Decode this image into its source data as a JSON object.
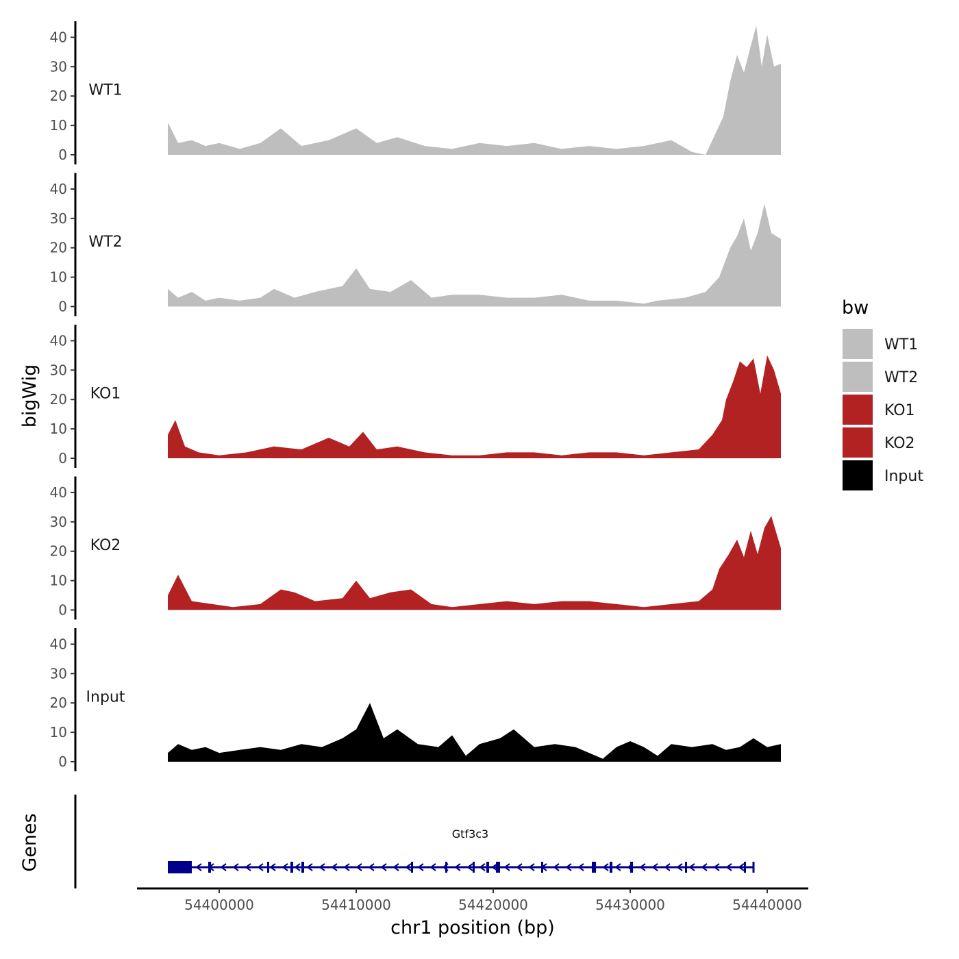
{
  "chart_data": {
    "type": "area",
    "chromosome": "chr1",
    "xlabel": "chr1 position (bp)",
    "ylabel": "bigWig",
    "genes_label": "Genes",
    "xlim": [
      54394000,
      54443000
    ],
    "x_ticks": [
      54400000,
      54410000,
      54420000,
      54430000,
      54440000
    ],
    "x_tick_labels": [
      "54400000",
      "54410000",
      "54420000",
      "54430000",
      "54440000"
    ],
    "ylim": [
      0,
      45
    ],
    "y_ticks": [
      0,
      10,
      20,
      30,
      40
    ],
    "y_tick_labels": [
      "0",
      "10",
      "20",
      "30",
      "40"
    ],
    "region": [
      54396250,
      54441000
    ],
    "legend": {
      "title": "bw",
      "entries": [
        {
          "label": "WT1",
          "color": "#bebebe"
        },
        {
          "label": "WT2",
          "color": "#bebebe"
        },
        {
          "label": "KO1",
          "color": "#b22222"
        },
        {
          "label": "KO2",
          "color": "#b22222"
        },
        {
          "label": "Input",
          "color": "#000000"
        }
      ]
    },
    "series": [
      {
        "name": "WT1",
        "color": "#bebebe",
        "values": [
          {
            "x": 54396250,
            "y": 11
          },
          {
            "x": 54397000,
            "y": 4
          },
          {
            "x": 54398000,
            "y": 5
          },
          {
            "x": 54399000,
            "y": 3
          },
          {
            "x": 54400000,
            "y": 4
          },
          {
            "x": 54401500,
            "y": 2
          },
          {
            "x": 54403000,
            "y": 4
          },
          {
            "x": 54404500,
            "y": 9
          },
          {
            "x": 54406000,
            "y": 3
          },
          {
            "x": 54408000,
            "y": 5
          },
          {
            "x": 54410000,
            "y": 9
          },
          {
            "x": 54411500,
            "y": 4
          },
          {
            "x": 54413000,
            "y": 6
          },
          {
            "x": 54415000,
            "y": 3
          },
          {
            "x": 54417000,
            "y": 2
          },
          {
            "x": 54419000,
            "y": 4
          },
          {
            "x": 54421000,
            "y": 3
          },
          {
            "x": 54423000,
            "y": 4
          },
          {
            "x": 54425000,
            "y": 2
          },
          {
            "x": 54427000,
            "y": 3
          },
          {
            "x": 54429000,
            "y": 2
          },
          {
            "x": 54431000,
            "y": 3
          },
          {
            "x": 54433000,
            "y": 5
          },
          {
            "x": 54434500,
            "y": 1
          },
          {
            "x": 54435500,
            "y": 0
          },
          {
            "x": 54436000,
            "y": 5
          },
          {
            "x": 54436800,
            "y": 13
          },
          {
            "x": 54437300,
            "y": 25
          },
          {
            "x": 54437800,
            "y": 34
          },
          {
            "x": 54438300,
            "y": 28
          },
          {
            "x": 54438800,
            "y": 37
          },
          {
            "x": 54439200,
            "y": 44
          },
          {
            "x": 54439600,
            "y": 30
          },
          {
            "x": 54440000,
            "y": 41
          },
          {
            "x": 54440500,
            "y": 30
          },
          {
            "x": 54441000,
            "y": 31
          }
        ]
      },
      {
        "name": "WT2",
        "color": "#bebebe",
        "values": [
          {
            "x": 54396250,
            "y": 6
          },
          {
            "x": 54397000,
            "y": 3
          },
          {
            "x": 54398000,
            "y": 5
          },
          {
            "x": 54399000,
            "y": 2
          },
          {
            "x": 54400000,
            "y": 3
          },
          {
            "x": 54401500,
            "y": 2
          },
          {
            "x": 54403000,
            "y": 3
          },
          {
            "x": 54404000,
            "y": 6
          },
          {
            "x": 54405500,
            "y": 3
          },
          {
            "x": 54407000,
            "y": 5
          },
          {
            "x": 54409000,
            "y": 7
          },
          {
            "x": 54410000,
            "y": 13
          },
          {
            "x": 54411000,
            "y": 6
          },
          {
            "x": 54412500,
            "y": 5
          },
          {
            "x": 54414000,
            "y": 9
          },
          {
            "x": 54415500,
            "y": 3
          },
          {
            "x": 54417000,
            "y": 4
          },
          {
            "x": 54419000,
            "y": 4
          },
          {
            "x": 54421000,
            "y": 3
          },
          {
            "x": 54423000,
            "y": 3
          },
          {
            "x": 54425000,
            "y": 4
          },
          {
            "x": 54427000,
            "y": 2
          },
          {
            "x": 54429000,
            "y": 2
          },
          {
            "x": 54431000,
            "y": 1
          },
          {
            "x": 54432000,
            "y": 2
          },
          {
            "x": 54434000,
            "y": 3
          },
          {
            "x": 54435500,
            "y": 5
          },
          {
            "x": 54436500,
            "y": 10
          },
          {
            "x": 54437300,
            "y": 20
          },
          {
            "x": 54437800,
            "y": 24
          },
          {
            "x": 54438300,
            "y": 30
          },
          {
            "x": 54438800,
            "y": 19
          },
          {
            "x": 54439300,
            "y": 25
          },
          {
            "x": 54439800,
            "y": 35
          },
          {
            "x": 54440300,
            "y": 25
          },
          {
            "x": 54441000,
            "y": 23
          }
        ]
      },
      {
        "name": "KO1",
        "color": "#b22222",
        "values": [
          {
            "x": 54396250,
            "y": 8
          },
          {
            "x": 54396800,
            "y": 13
          },
          {
            "x": 54397500,
            "y": 4
          },
          {
            "x": 54398500,
            "y": 2
          },
          {
            "x": 54400000,
            "y": 1
          },
          {
            "x": 54402000,
            "y": 2
          },
          {
            "x": 54404000,
            "y": 4
          },
          {
            "x": 54406000,
            "y": 3
          },
          {
            "x": 54408000,
            "y": 7
          },
          {
            "x": 54409500,
            "y": 4
          },
          {
            "x": 54410500,
            "y": 9
          },
          {
            "x": 54411500,
            "y": 3
          },
          {
            "x": 54413000,
            "y": 4
          },
          {
            "x": 54415000,
            "y": 2
          },
          {
            "x": 54417000,
            "y": 1
          },
          {
            "x": 54419000,
            "y": 1
          },
          {
            "x": 54421000,
            "y": 2
          },
          {
            "x": 54423000,
            "y": 2
          },
          {
            "x": 54425000,
            "y": 1
          },
          {
            "x": 54427000,
            "y": 2
          },
          {
            "x": 54429000,
            "y": 2
          },
          {
            "x": 54431000,
            "y": 1
          },
          {
            "x": 54433000,
            "y": 2
          },
          {
            "x": 54435000,
            "y": 3
          },
          {
            "x": 54436000,
            "y": 8
          },
          {
            "x": 54436700,
            "y": 13
          },
          {
            "x": 54437000,
            "y": 20
          },
          {
            "x": 54437500,
            "y": 26
          },
          {
            "x": 54438000,
            "y": 33
          },
          {
            "x": 54438500,
            "y": 31
          },
          {
            "x": 54439000,
            "y": 34
          },
          {
            "x": 54439500,
            "y": 22
          },
          {
            "x": 54440000,
            "y": 35
          },
          {
            "x": 54440500,
            "y": 30
          },
          {
            "x": 54441000,
            "y": 22
          }
        ]
      },
      {
        "name": "KO2",
        "color": "#b22222",
        "values": [
          {
            "x": 54396250,
            "y": 5
          },
          {
            "x": 54397000,
            "y": 12
          },
          {
            "x": 54398000,
            "y": 3
          },
          {
            "x": 54399500,
            "y": 2
          },
          {
            "x": 54401000,
            "y": 1
          },
          {
            "x": 54403000,
            "y": 2
          },
          {
            "x": 54404500,
            "y": 7
          },
          {
            "x": 54405500,
            "y": 6
          },
          {
            "x": 54407000,
            "y": 3
          },
          {
            "x": 54409000,
            "y": 4
          },
          {
            "x": 54410000,
            "y": 10
          },
          {
            "x": 54411000,
            "y": 4
          },
          {
            "x": 54412500,
            "y": 6
          },
          {
            "x": 54414000,
            "y": 7
          },
          {
            "x": 54415500,
            "y": 2
          },
          {
            "x": 54417000,
            "y": 1
          },
          {
            "x": 54419000,
            "y": 2
          },
          {
            "x": 54421000,
            "y": 3
          },
          {
            "x": 54423000,
            "y": 2
          },
          {
            "x": 54425000,
            "y": 3
          },
          {
            "x": 54427000,
            "y": 3
          },
          {
            "x": 54429000,
            "y": 2
          },
          {
            "x": 54431000,
            "y": 1
          },
          {
            "x": 54433000,
            "y": 2
          },
          {
            "x": 54435000,
            "y": 3
          },
          {
            "x": 54436000,
            "y": 7
          },
          {
            "x": 54436500,
            "y": 14
          },
          {
            "x": 54437200,
            "y": 19
          },
          {
            "x": 54437800,
            "y": 24
          },
          {
            "x": 54438300,
            "y": 18
          },
          {
            "x": 54438800,
            "y": 27
          },
          {
            "x": 54439300,
            "y": 19
          },
          {
            "x": 54439800,
            "y": 28
          },
          {
            "x": 54440300,
            "y": 32
          },
          {
            "x": 54441000,
            "y": 21
          }
        ]
      },
      {
        "name": "Input",
        "color": "#000000",
        "values": [
          {
            "x": 54396250,
            "y": 3
          },
          {
            "x": 54397000,
            "y": 6
          },
          {
            "x": 54398000,
            "y": 4
          },
          {
            "x": 54399000,
            "y": 5
          },
          {
            "x": 54400000,
            "y": 3
          },
          {
            "x": 54401500,
            "y": 4
          },
          {
            "x": 54403000,
            "y": 5
          },
          {
            "x": 54404500,
            "y": 4
          },
          {
            "x": 54406000,
            "y": 6
          },
          {
            "x": 54407500,
            "y": 5
          },
          {
            "x": 54409000,
            "y": 8
          },
          {
            "x": 54410000,
            "y": 11
          },
          {
            "x": 54411000,
            "y": 20
          },
          {
            "x": 54412000,
            "y": 8
          },
          {
            "x": 54413000,
            "y": 11
          },
          {
            "x": 54414500,
            "y": 6
          },
          {
            "x": 54416000,
            "y": 5
          },
          {
            "x": 54417000,
            "y": 9
          },
          {
            "x": 54418000,
            "y": 2
          },
          {
            "x": 54419000,
            "y": 6
          },
          {
            "x": 54420500,
            "y": 8
          },
          {
            "x": 54421500,
            "y": 11
          },
          {
            "x": 54423000,
            "y": 5
          },
          {
            "x": 54424500,
            "y": 6
          },
          {
            "x": 54426000,
            "y": 5
          },
          {
            "x": 54427000,
            "y": 3
          },
          {
            "x": 54428000,
            "y": 1
          },
          {
            "x": 54429000,
            "y": 5
          },
          {
            "x": 54430000,
            "y": 7
          },
          {
            "x": 54431000,
            "y": 5
          },
          {
            "x": 54432000,
            "y": 2
          },
          {
            "x": 54433000,
            "y": 6
          },
          {
            "x": 54434500,
            "y": 5
          },
          {
            "x": 54436000,
            "y": 6
          },
          {
            "x": 54437000,
            "y": 4
          },
          {
            "x": 54438000,
            "y": 5
          },
          {
            "x": 54439000,
            "y": 8
          },
          {
            "x": 54440000,
            "y": 5
          },
          {
            "x": 54441000,
            "y": 6
          }
        ]
      }
    ],
    "gene": {
      "name": "Gtf3c3",
      "color": "#00008b",
      "strand": "-",
      "start": 54396250,
      "end": 54439000,
      "exons": [
        [
          54396250,
          54398000
        ],
        [
          54399200,
          54399400
        ],
        [
          54403500,
          54403600
        ],
        [
          54405200,
          54405400
        ],
        [
          54406000,
          54406200
        ],
        [
          54414000,
          54414100
        ],
        [
          54416500,
          54416600
        ],
        [
          54418500,
          54418600
        ],
        [
          54419500,
          54419700
        ],
        [
          54420200,
          54420500
        ],
        [
          54423500,
          54423600
        ],
        [
          54427200,
          54427500
        ],
        [
          54428500,
          54428700
        ],
        [
          54430000,
          54430200
        ],
        [
          54434000,
          54434100
        ],
        [
          54438300,
          54438400
        ]
      ]
    }
  }
}
